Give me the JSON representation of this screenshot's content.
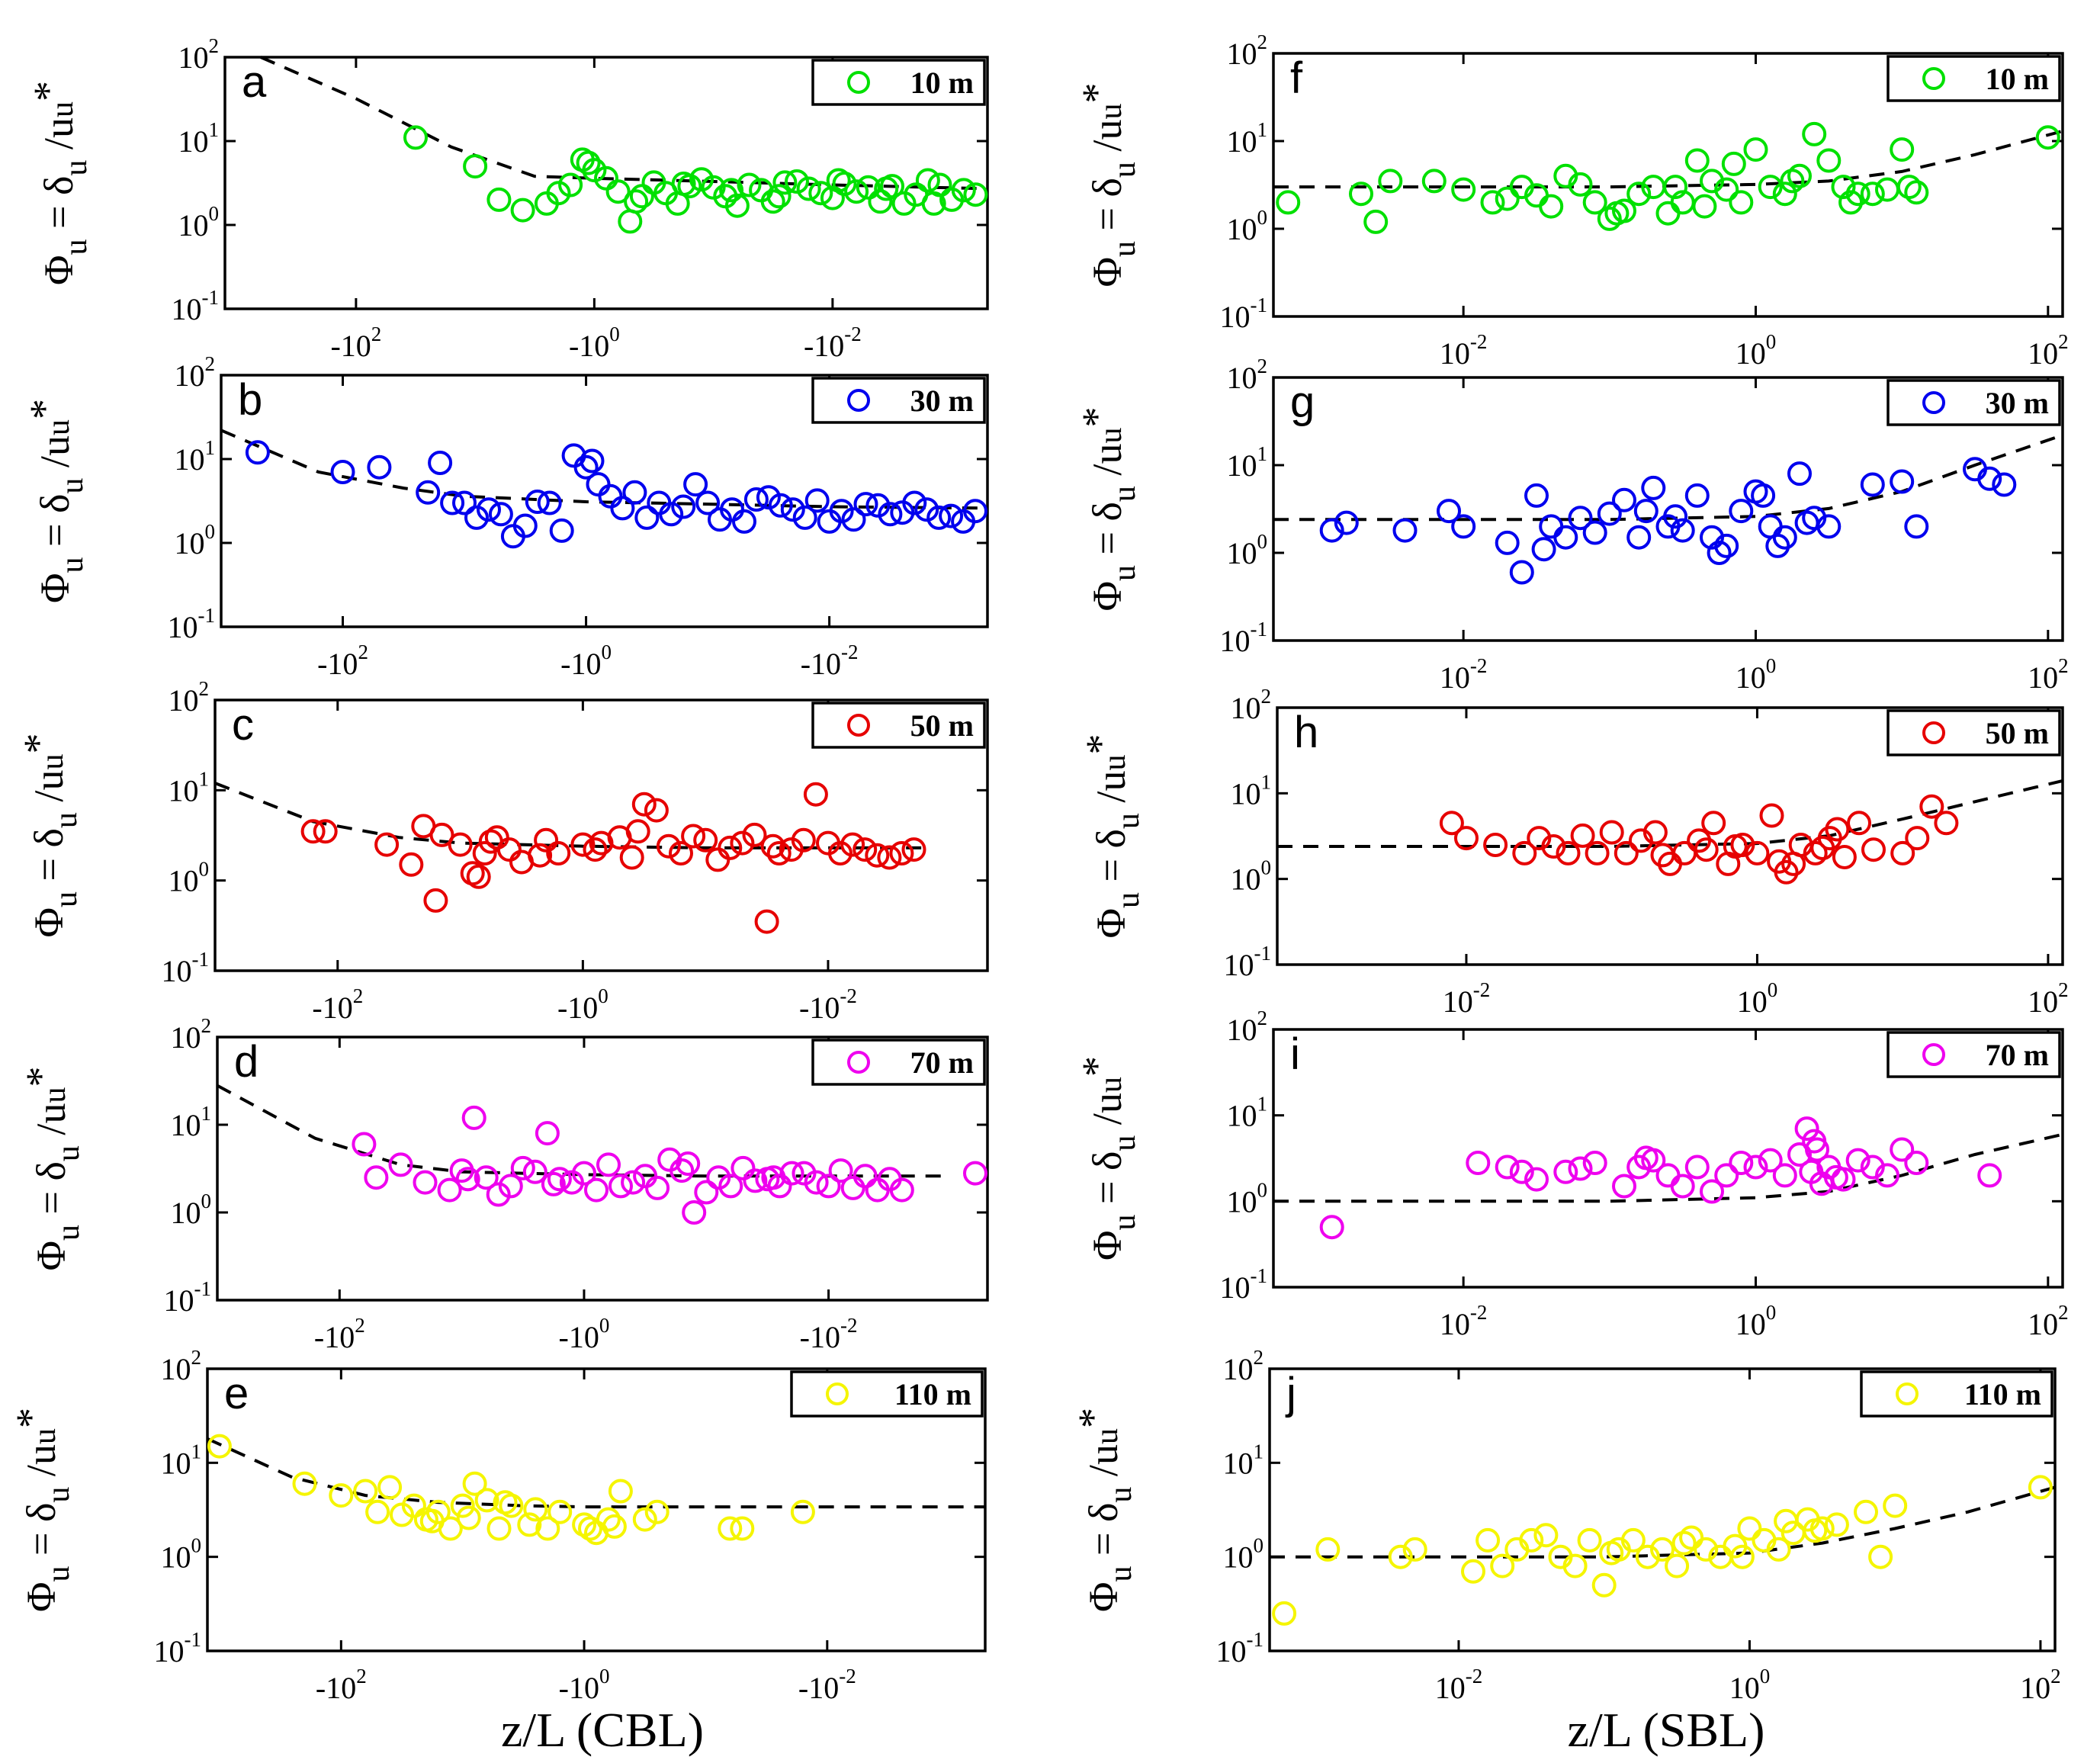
{
  "x_labels": {
    "cbl": "z/L (CBL)",
    "sbl": "z/L (SBL)"
  },
  "y_label": {
    "phi": "Φ",
    "sub_u": "u",
    "eq": " = δ",
    "slash": " /u",
    "star": "*"
  },
  "tick_labels": {
    "y": [
      {
        "base": "10",
        "exp": "2"
      },
      {
        "base": "10",
        "exp": "1"
      },
      {
        "base": "10",
        "exp": "0"
      },
      {
        "base": "10",
        "exp": "-1"
      }
    ],
    "cbl_x": [
      {
        "base": "-10",
        "exp": "2"
      },
      {
        "base": "-10",
        "exp": "0"
      },
      {
        "base": "-10",
        "exp": "-2"
      }
    ],
    "sbl_x": [
      {
        "base": "10",
        "exp": "-2"
      },
      {
        "base": "10",
        "exp": "0"
      },
      {
        "base": "10",
        "exp": "2"
      }
    ]
  },
  "chart_data": [
    {
      "id": "a",
      "type": "scatter",
      "regime": "CBL",
      "height_label": "10 m",
      "color": "#00e000",
      "xaxis": "log(-z/L)",
      "xlim_log": [
        3.1,
        -3.3
      ],
      "ylim_log": [
        -1,
        2
      ],
      "fit_x": [
        2.8,
        2.0,
        1.2,
        0.5,
        0.0,
        -1.0,
        -2.0,
        -3.3
      ],
      "fit_y": [
        100,
        32,
        8.5,
        3.8,
        3.6,
        3.3,
        3.0,
        2.7
      ],
      "x": [
        1.5,
        1.0,
        0.8,
        0.6,
        0.4,
        0.2,
        0.1,
        0.0,
        -0.2,
        -0.3,
        -0.5,
        -0.6,
        -0.7,
        -0.9,
        -1.0,
        -1.1,
        -1.3,
        -1.4,
        -1.5,
        -1.7,
        -1.8,
        -2.0,
        -2.1,
        -2.2,
        -2.4,
        -2.5,
        -2.7,
        -2.8,
        -3.0,
        -3.1,
        0.3,
        -0.1,
        -0.4,
        -0.8,
        -1.2,
        -1.6,
        -1.9,
        -2.3,
        -2.6,
        -2.9,
        0.05,
        -0.35,
        -0.75,
        -1.15,
        -1.55,
        -2.05,
        -2.45,
        -2.85,
        -3.2
      ],
      "y": [
        11,
        5,
        2,
        1.5,
        1.8,
        3,
        6,
        4.5,
        2.5,
        1.1,
        3.2,
        2.4,
        1.8,
        3.5,
        2.8,
        2.2,
        3.0,
        2.6,
        1.9,
        3.3,
        2.7,
        2.1,
        3.1,
        2.5,
        1.9,
        2.9,
        2.3,
        3.4,
        2.0,
        2.6,
        2.4,
        3.6,
        2.2,
        2.9,
        1.7,
        3.2,
        2.4,
        2.8,
        1.8,
        3.0,
        5.5,
        1.9,
        3.1,
        2.6,
        2.2,
        3.4,
        2.7,
        1.8,
        2.3
      ]
    },
    {
      "id": "b",
      "type": "scatter",
      "regime": "CBL",
      "height_label": "30 m",
      "color": "#0000ee",
      "xaxis": "log(-z/L)",
      "xlim_log": [
        3.0,
        -3.3
      ],
      "ylim_log": [
        -1,
        2
      ],
      "fit_x": [
        3.0,
        2.2,
        1.5,
        1.0,
        0.0,
        -1.0,
        -2.0,
        -3.3
      ],
      "fit_y": [
        22,
        7,
        4.5,
        3.6,
        3.1,
        2.9,
        2.7,
        2.6
      ],
      "x": [
        2.7,
        2.0,
        1.7,
        1.3,
        1.2,
        1.0,
        0.9,
        0.8,
        0.6,
        0.5,
        0.3,
        0.1,
        0.0,
        -0.1,
        -0.3,
        -0.4,
        -0.6,
        -0.7,
        -0.9,
        -1.0,
        -1.2,
        -1.3,
        -1.5,
        -1.6,
        -1.8,
        -1.9,
        -2.1,
        -2.2,
        -2.4,
        -2.5,
        -2.7,
        -2.8,
        -3.0,
        -3.1,
        -3.2,
        1.1,
        0.7,
        0.2,
        -0.2,
        -0.5,
        -0.8,
        -1.1,
        -1.4,
        -1.7,
        -2.0,
        -2.3,
        -2.6,
        -2.9,
        0.4,
        -0.05
      ],
      "y": [
        12,
        7,
        8,
        4,
        9,
        3,
        2,
        2.5,
        1.2,
        1.6,
        3,
        11,
        8,
        5,
        2.6,
        4,
        3,
        2.2,
        5,
        3,
        2.5,
        1.8,
        3.5,
        2.8,
        2.0,
        3.2,
        2.4,
        1.9,
        2.8,
        2.2,
        3,
        2.5,
        2.1,
        1.8,
        2.4,
        3.0,
        2.2,
        1.4,
        3.6,
        2.0,
        2.7,
        1.9,
        3.3,
        2.5,
        1.8,
        2.9,
        2.3,
        2.0,
        3.1,
        9.5
      ]
    },
    {
      "id": "c",
      "type": "scatter",
      "regime": "CBL",
      "height_label": "50 m",
      "color": "#e60000",
      "xaxis": "log(-z/L)",
      "xlim_log": [
        3.0,
        -3.3
      ],
      "ylim_log": [
        -1,
        2
      ],
      "fit_x": [
        3.0,
        2.2,
        1.5,
        1.0,
        0.0,
        -1.0,
        -2.0,
        -2.8
      ],
      "fit_y": [
        12,
        4.5,
        3.0,
        2.6,
        2.4,
        2.3,
        2.3,
        2.3
      ],
      "x": [
        2.2,
        2.1,
        1.6,
        1.4,
        1.3,
        1.2,
        1.0,
        0.9,
        0.8,
        0.7,
        0.6,
        0.5,
        0.3,
        0.2,
        0.0,
        -0.1,
        -0.3,
        -0.4,
        -0.5,
        -0.7,
        -0.8,
        -1.0,
        -1.1,
        -1.3,
        -1.4,
        -1.5,
        -1.7,
        -1.8,
        -1.9,
        -2.1,
        -2.2,
        -2.3,
        -2.5,
        -2.6,
        -2.7,
        1.15,
        0.75,
        0.35,
        -0.15,
        -0.6,
        -0.9,
        -1.2,
        -1.6,
        -2.0,
        -2.4,
        -1.55,
        -0.45,
        0.85
      ],
      "y": [
        3.5,
        3.5,
        2.5,
        1.5,
        4,
        0.6,
        2.5,
        1.2,
        2.0,
        3.0,
        2.2,
        1.6,
        2.8,
        2.0,
        2.5,
        2.2,
        3.0,
        1.8,
        7,
        2.4,
        2.0,
        2.8,
        1.7,
        2.6,
        3.2,
        0.35,
        2.2,
        2.8,
        9,
        2.0,
        2.5,
        2.2,
        1.8,
        2.0,
        2.2,
        3.2,
        2.7,
        1.9,
        2.6,
        6,
        3.1,
        2.3,
        2.0,
        2.6,
        1.9,
        2.4,
        3.5,
        1.1
      ]
    },
    {
      "id": "d",
      "type": "scatter",
      "regime": "CBL",
      "height_label": "70 m",
      "color": "#ee00ee",
      "xaxis": "log(-z/L)",
      "xlim_log": [
        3.0,
        -3.3
      ],
      "ylim_log": [
        -1,
        2
      ],
      "fit_x": [
        3.0,
        2.2,
        1.5,
        1.0,
        0.0,
        -1.0,
        -2.0,
        -3.0
      ],
      "fit_y": [
        28,
        7,
        3.5,
        2.9,
        2.7,
        2.6,
        2.6,
        2.6
      ],
      "x": [
        1.8,
        1.7,
        1.5,
        1.3,
        1.1,
        1.0,
        0.9,
        0.8,
        0.6,
        0.5,
        0.3,
        0.2,
        0.0,
        -0.1,
        -0.2,
        -0.4,
        -0.5,
        -0.6,
        -0.8,
        -0.9,
        -1.1,
        -1.2,
        -1.3,
        -1.5,
        -1.6,
        -1.8,
        -1.9,
        -2.1,
        -2.2,
        -2.3,
        -2.5,
        -2.6,
        -3.2,
        0.95,
        0.7,
        0.4,
        0.1,
        -0.3,
        -0.7,
        -1.0,
        -1.4,
        -1.7,
        -2.0,
        -2.4,
        0.25,
        -0.85,
        -1.55
      ],
      "y": [
        6,
        2.5,
        3.5,
        2.2,
        1.8,
        3.0,
        12,
        2.5,
        2.0,
        3.2,
        8,
        2.4,
        2.8,
        1.8,
        3.5,
        2.2,
        2.6,
        1.9,
        3.0,
        1.0,
        2.5,
        2.0,
        3.2,
        2.4,
        2.0,
        2.8,
        2.2,
        3.0,
        1.9,
        2.6,
        2.4,
        1.8,
        2.8,
        2.4,
        1.6,
        2.9,
        2.2,
        2.0,
        4.0,
        1.7,
        2.3,
        2.8,
        2.0,
        1.8,
        2.1,
        3.6,
        2.5
      ]
    },
    {
      "id": "e",
      "type": "scatter",
      "regime": "CBL",
      "height_label": "110 m",
      "color": "#f5f500",
      "xaxis": "log(-z/L)",
      "xlim_log": [
        3.1,
        -3.3
      ],
      "ylim_log": [
        -1,
        2
      ],
      "fit_x": [
        3.1,
        2.4,
        1.8,
        1.2,
        0.5,
        0.0,
        -1.0,
        -2.0,
        -3.3
      ],
      "fit_y": [
        18,
        7,
        4.5,
        3.8,
        3.5,
        3.4,
        3.4,
        3.4,
        3.4
      ],
      "x": [
        3.0,
        2.3,
        2.0,
        1.8,
        1.7,
        1.5,
        1.4,
        1.3,
        1.2,
        1.1,
        1.0,
        0.9,
        0.8,
        0.7,
        0.6,
        0.4,
        0.3,
        0.2,
        0.0,
        -0.1,
        -0.2,
        -0.3,
        -0.5,
        -0.6,
        -1.2,
        -1.3,
        -1.8,
        1.6,
        1.25,
        0.95,
        0.65,
        0.45,
        -0.05,
        -0.25
      ],
      "y": [
        15,
        6,
        4.5,
        5,
        3.0,
        2.8,
        3.5,
        2.5,
        3.0,
        2.0,
        3.5,
        6,
        4.0,
        2.0,
        3.5,
        3.2,
        2.0,
        3.0,
        2.2,
        1.8,
        2.5,
        5,
        2.5,
        3.0,
        2.0,
        2.0,
        3.0,
        5.5,
        2.4,
        2.6,
        3.8,
        2.2,
        2.0,
        2.1
      ]
    },
    {
      "id": "f",
      "type": "scatter",
      "regime": "SBL",
      "height_label": "10 m",
      "color": "#00e000",
      "xaxis": "log(z/L)",
      "xlim_log": [
        -3.3,
        2.1
      ],
      "ylim_log": [
        -1,
        2
      ],
      "fit_x": [
        -3.3,
        -2.0,
        -1.0,
        0.0,
        0.5,
        1.0,
        1.5,
        2.1
      ],
      "fit_y": [
        3.0,
        3.0,
        3.0,
        3.2,
        3.5,
        4.5,
        7,
        13
      ],
      "x": [
        -3.2,
        -2.7,
        -2.6,
        -2.5,
        -2.2,
        -2.0,
        -1.8,
        -1.6,
        -1.5,
        -1.4,
        -1.2,
        -1.1,
        -1.0,
        -0.9,
        -0.8,
        -0.7,
        -0.6,
        -0.5,
        -0.4,
        -0.3,
        -0.2,
        -0.1,
        0.0,
        0.1,
        0.2,
        0.3,
        0.4,
        0.5,
        0.6,
        0.7,
        0.8,
        1.0,
        1.05,
        1.1,
        2.0,
        -1.3,
        -0.95,
        -0.55,
        -0.15,
        0.25,
        0.65,
        0.9,
        -1.7,
        -0.35
      ],
      "y": [
        2.0,
        2.5,
        1.2,
        3.5,
        3.5,
        2.8,
        2.0,
        3.0,
        2.4,
        1.8,
        3.2,
        2.0,
        1.3,
        1.6,
        2.5,
        3.0,
        1.5,
        2.0,
        6,
        3.5,
        2.8,
        2.0,
        8,
        3.0,
        2.5,
        4.0,
        12,
        6,
        3.0,
        2.5,
        2.5,
        8,
        3.0,
        2.6,
        11,
        4.0,
        1.5,
        3.0,
        5.5,
        3.5,
        2.0,
        2.8,
        2.2,
        1.8
      ]
    },
    {
      "id": "g",
      "type": "scatter",
      "regime": "SBL",
      "height_label": "30 m",
      "color": "#0000ee",
      "xaxis": "log(z/L)",
      "xlim_log": [
        -3.3,
        2.1
      ],
      "ylim_log": [
        -1,
        2
      ],
      "fit_x": [
        -3.3,
        -2.0,
        -1.0,
        0.0,
        0.5,
        1.0,
        1.5,
        2.1
      ],
      "fit_y": [
        2.4,
        2.4,
        2.4,
        2.6,
        3.2,
        5,
        10,
        22
      ],
      "x": [
        -2.9,
        -2.8,
        -2.4,
        -2.1,
        -2.0,
        -1.7,
        -1.6,
        -1.5,
        -1.4,
        -1.3,
        -1.2,
        -1.0,
        -0.9,
        -0.8,
        -0.7,
        -0.6,
        -0.5,
        -0.4,
        -0.3,
        -0.2,
        -0.1,
        0.0,
        0.1,
        0.2,
        0.3,
        0.4,
        0.5,
        0.8,
        1.0,
        1.1,
        1.5,
        1.6,
        1.7,
        -1.45,
        -0.75,
        -0.25,
        0.05,
        0.35,
        -1.1,
        -0.55,
        0.15
      ],
      "y": [
        1.8,
        2.2,
        1.8,
        3.0,
        2.0,
        1.3,
        0.6,
        4.5,
        2.0,
        1.5,
        2.5,
        2.8,
        4.0,
        1.5,
        5.5,
        2.0,
        1.8,
        4.5,
        1.5,
        1.2,
        3.0,
        5.0,
        2.0,
        1.5,
        8,
        2.5,
        2.0,
        6,
        6.5,
        2.0,
        9,
        7,
        6,
        1.1,
        3.0,
        1.0,
        4.5,
        2.2,
        1.7,
        2.6,
        1.2
      ]
    },
    {
      "id": "h",
      "type": "scatter",
      "regime": "SBL",
      "height_label": "50 m",
      "color": "#e60000",
      "xaxis": "log(z/L)",
      "xlim_log": [
        -3.3,
        2.1
      ],
      "ylim_log": [
        -1,
        2
      ],
      "fit_x": [
        -3.3,
        -2.0,
        -1.0,
        0.0,
        0.5,
        1.0,
        1.5,
        2.1
      ],
      "fit_y": [
        2.4,
        2.4,
        2.4,
        2.6,
        3.2,
        5,
        8,
        14
      ],
      "x": [
        -2.1,
        -2.0,
        -1.8,
        -1.6,
        -1.5,
        -1.4,
        -1.3,
        -1.2,
        -1.0,
        -0.9,
        -0.8,
        -0.7,
        -0.6,
        -0.5,
        -0.4,
        -0.3,
        -0.2,
        -0.1,
        0.0,
        0.1,
        0.2,
        0.3,
        0.4,
        0.5,
        0.6,
        0.7,
        0.8,
        1.0,
        1.1,
        1.2,
        1.3,
        -1.1,
        -0.65,
        -0.15,
        0.25,
        0.55,
        -0.35,
        0.15,
        0.45
      ],
      "y": [
        4.5,
        3.0,
        2.5,
        2.0,
        3.0,
        2.4,
        2.0,
        3.2,
        3.5,
        2.0,
        2.8,
        3.5,
        1.5,
        2.0,
        2.8,
        4.5,
        1.5,
        2.5,
        2.0,
        5.5,
        1.2,
        2.5,
        2.0,
        3.0,
        1.8,
        4.5,
        2.2,
        2.0,
        3.0,
        7,
        4.5,
        2.0,
        1.9,
        2.4,
        1.5,
        3.8,
        2.2,
        1.6,
        2.3
      ]
    },
    {
      "id": "i",
      "type": "scatter",
      "regime": "SBL",
      "height_label": "70 m",
      "color": "#ee00ee",
      "xaxis": "log(z/L)",
      "xlim_log": [
        -3.3,
        2.1
      ],
      "ylim_log": [
        -1,
        2
      ],
      "fit_x": [
        -3.3,
        -2.0,
        -1.0,
        0.0,
        0.5,
        1.0,
        1.5,
        2.1
      ],
      "fit_y": [
        1.0,
        1.0,
        1.0,
        1.1,
        1.3,
        2.0,
        3.5,
        6
      ],
      "x": [
        -2.9,
        -1.9,
        -1.7,
        -1.6,
        -1.5,
        -1.3,
        -1.1,
        -0.9,
        -0.8,
        -0.7,
        -0.6,
        -0.5,
        -0.4,
        -0.3,
        -0.2,
        -0.1,
        0.0,
        0.1,
        0.2,
        0.3,
        0.35,
        0.4,
        0.5,
        0.6,
        0.7,
        0.8,
        0.9,
        1.0,
        1.1,
        1.6,
        0.38,
        0.42,
        0.45,
        0.55,
        -1.2,
        -0.75
      ],
      "y": [
        0.5,
        2.8,
        2.5,
        2.2,
        1.8,
        2.2,
        2.8,
        1.5,
        2.5,
        3.0,
        2.0,
        1.5,
        2.5,
        1.3,
        2.0,
        2.8,
        2.5,
        3.0,
        2.0,
        3.5,
        7,
        5,
        2.5,
        1.8,
        3.0,
        2.5,
        2.0,
        4.0,
        2.8,
        2.0,
        2.2,
        4.0,
        1.6,
        1.9,
        2.4,
        3.2
      ]
    },
    {
      "id": "j",
      "type": "scatter",
      "regime": "SBL",
      "height_label": "110 m",
      "color": "#f5f500",
      "xaxis": "log(z/L)",
      "xlim_log": [
        -3.3,
        2.1
      ],
      "ylim_log": [
        -1,
        2
      ],
      "fit_x": [
        -3.3,
        -2.0,
        -1.0,
        0.0,
        0.5,
        1.0,
        1.5,
        2.1
      ],
      "fit_y": [
        1.0,
        1.0,
        1.0,
        1.1,
        1.4,
        2.0,
        3.0,
        5.5
      ],
      "x": [
        -3.2,
        -2.9,
        -2.4,
        -2.3,
        -1.9,
        -1.8,
        -1.7,
        -1.6,
        -1.5,
        -1.3,
        -1.2,
        -1.1,
        -1.0,
        -0.9,
        -0.8,
        -0.7,
        -0.6,
        -0.5,
        -0.4,
        -0.3,
        -0.2,
        -0.1,
        0.0,
        0.1,
        0.2,
        0.3,
        0.4,
        0.5,
        0.6,
        0.8,
        0.9,
        1.0,
        2.0,
        -1.4,
        -0.95,
        -0.45,
        -0.05,
        0.25,
        0.45
      ],
      "y": [
        0.25,
        1.2,
        1.0,
        1.2,
        0.7,
        1.5,
        0.8,
        1.2,
        1.5,
        1.0,
        0.8,
        1.5,
        0.5,
        1.2,
        1.5,
        1.0,
        1.2,
        0.8,
        1.6,
        1.2,
        1.0,
        1.3,
        2.0,
        1.5,
        1.2,
        1.8,
        2.5,
        2.0,
        2.2,
        3.0,
        1.0,
        3.5,
        5.5,
        1.7,
        1.1,
        1.4,
        1.0,
        2.4,
        1.9
      ]
    }
  ]
}
